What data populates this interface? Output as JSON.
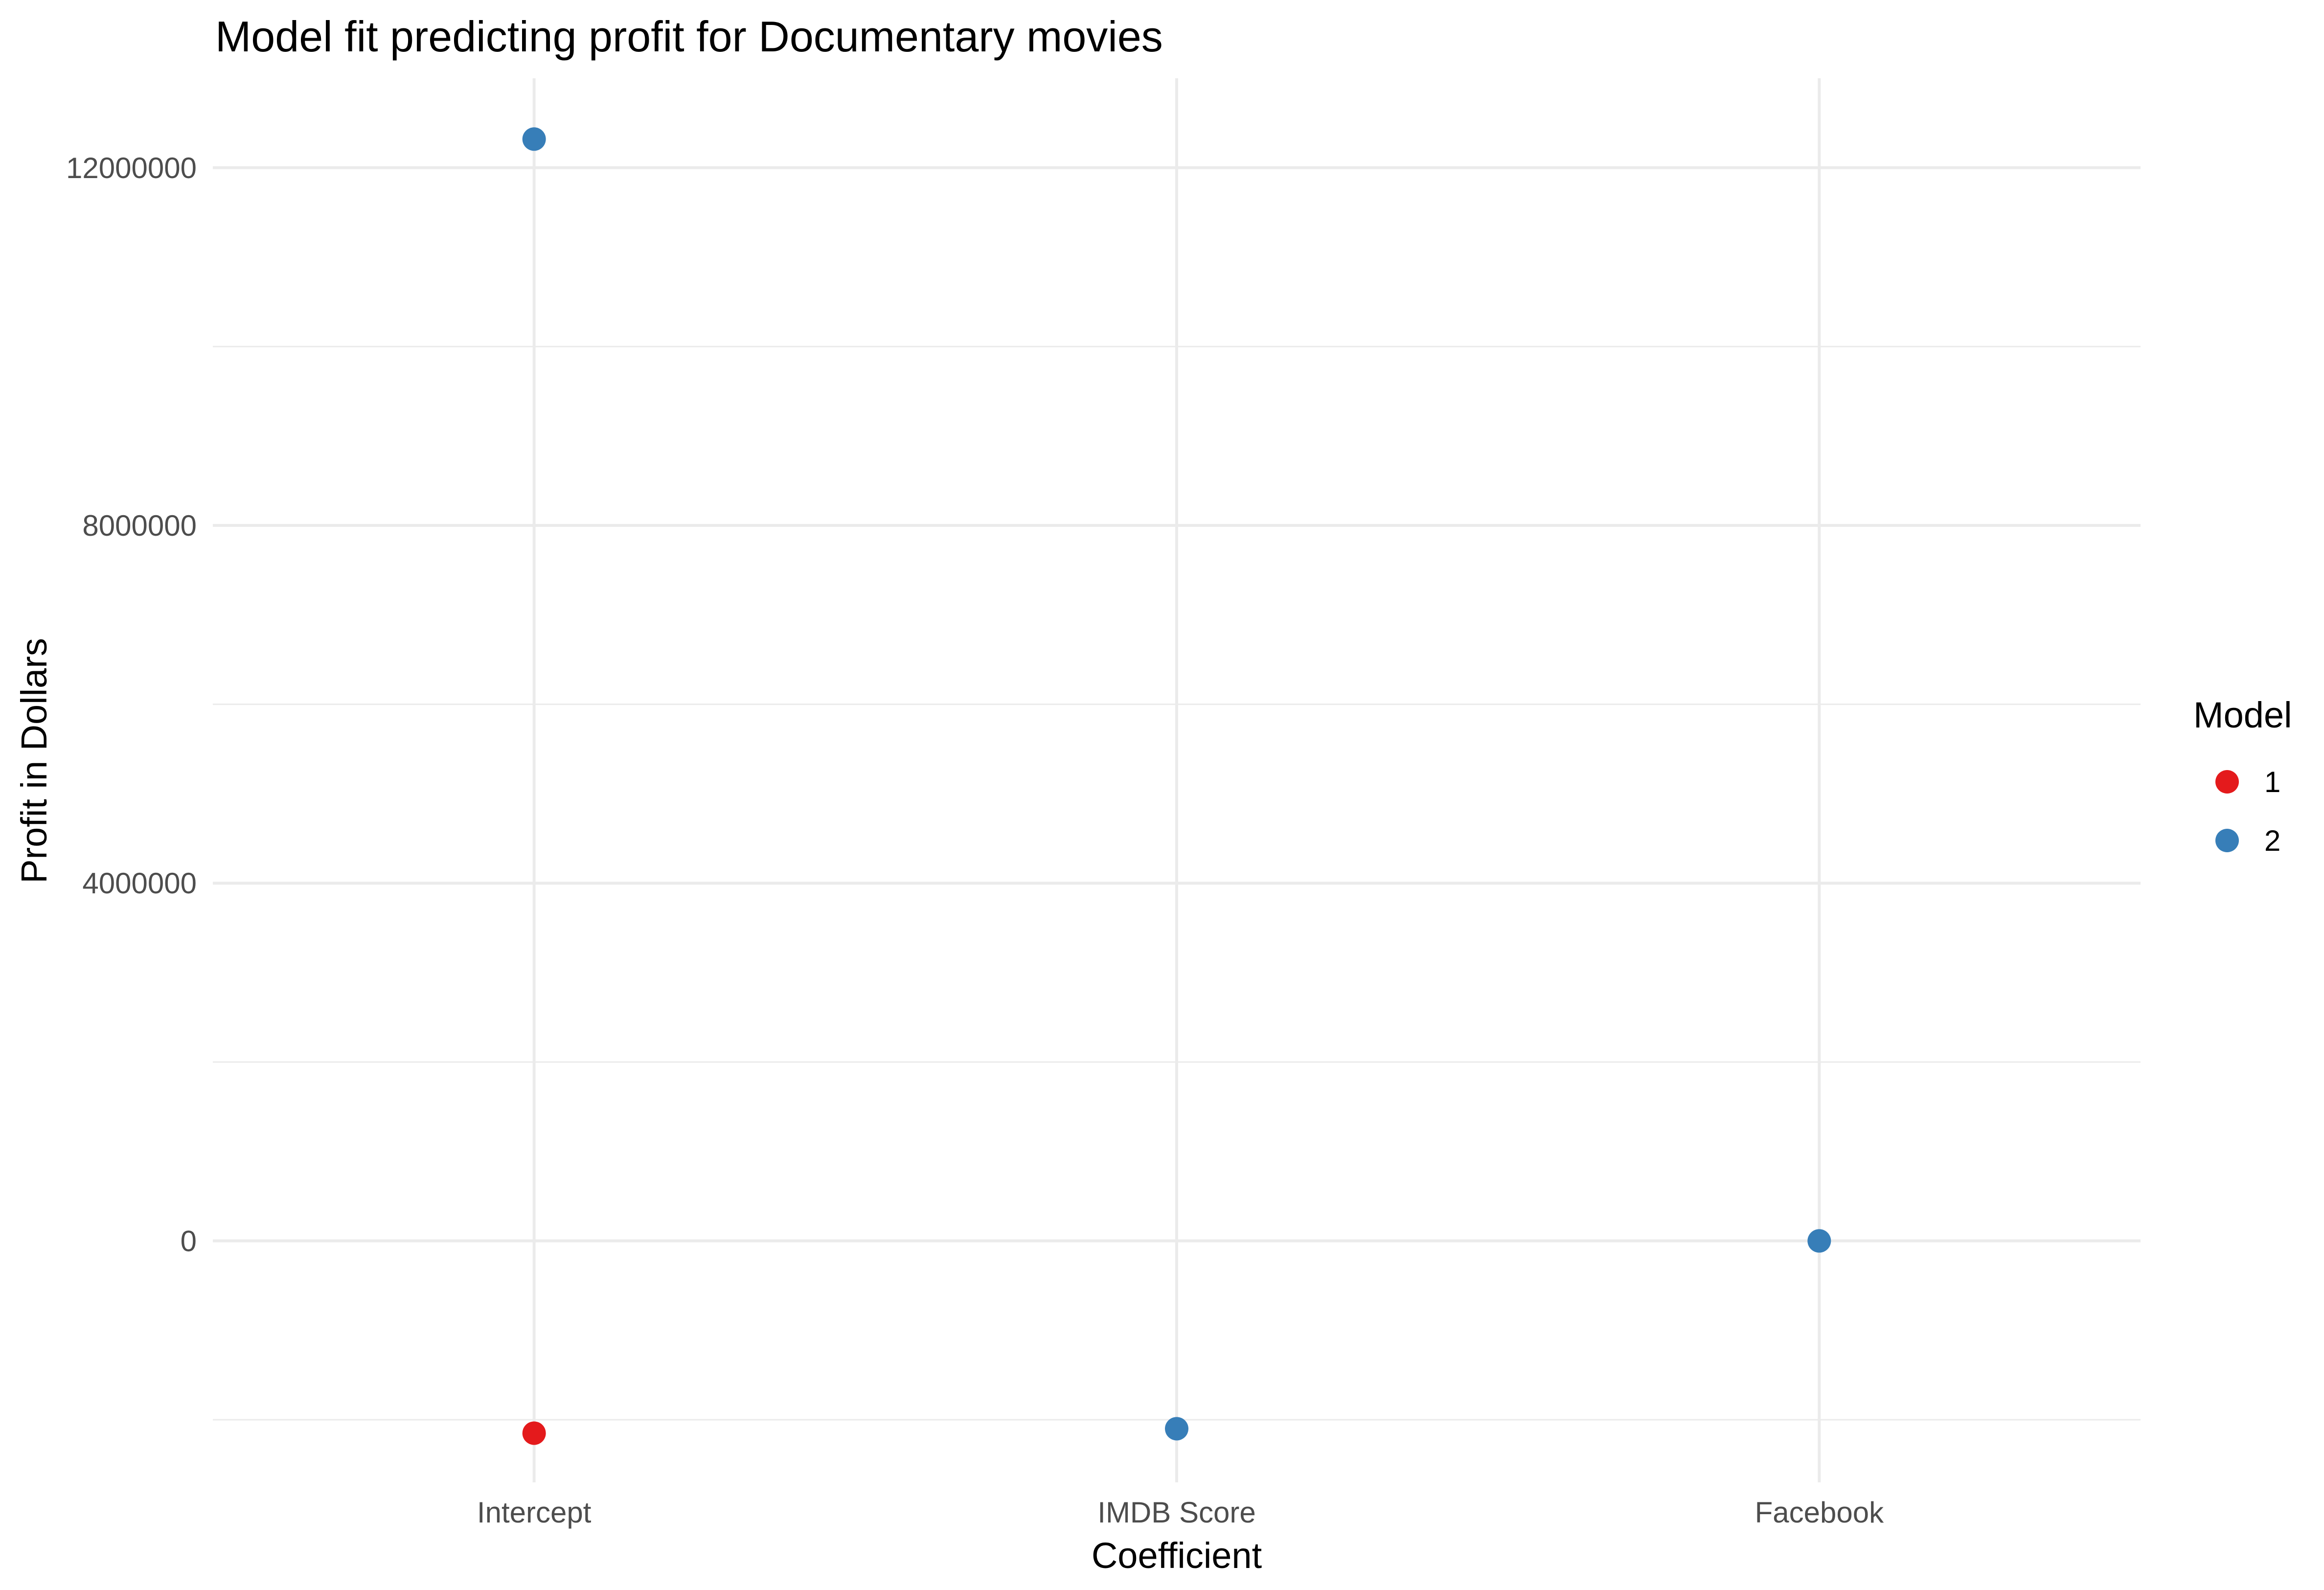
{
  "chart_data": {
    "type": "scatter",
    "title": "Model fit predicting profit for Documentary movies",
    "xlabel": "Coefficient",
    "ylabel": "Profit in Dollars",
    "categories": [
      "Intercept",
      "IMDB Score",
      "Facebook"
    ],
    "ylim": [
      -2700000,
      13000000
    ],
    "yticks": [
      0,
      4000000,
      8000000,
      12000000
    ],
    "ytick_labels": [
      "0",
      "4000000",
      "8000000",
      "12000000"
    ],
    "yminor": [
      -2000000,
      2000000,
      6000000,
      10000000
    ],
    "grid": true,
    "legend": {
      "title": "Model",
      "position": "right"
    },
    "series": [
      {
        "name": "1",
        "color": "#E41A1C",
        "points": [
          {
            "x": "Intercept",
            "y": -2150000
          }
        ]
      },
      {
        "name": "2",
        "color": "#377EB8",
        "points": [
          {
            "x": "Intercept",
            "y": 12320000
          },
          {
            "x": "IMDB Score",
            "y": -2100000
          },
          {
            "x": "Facebook",
            "y": 0
          }
        ]
      }
    ]
  }
}
